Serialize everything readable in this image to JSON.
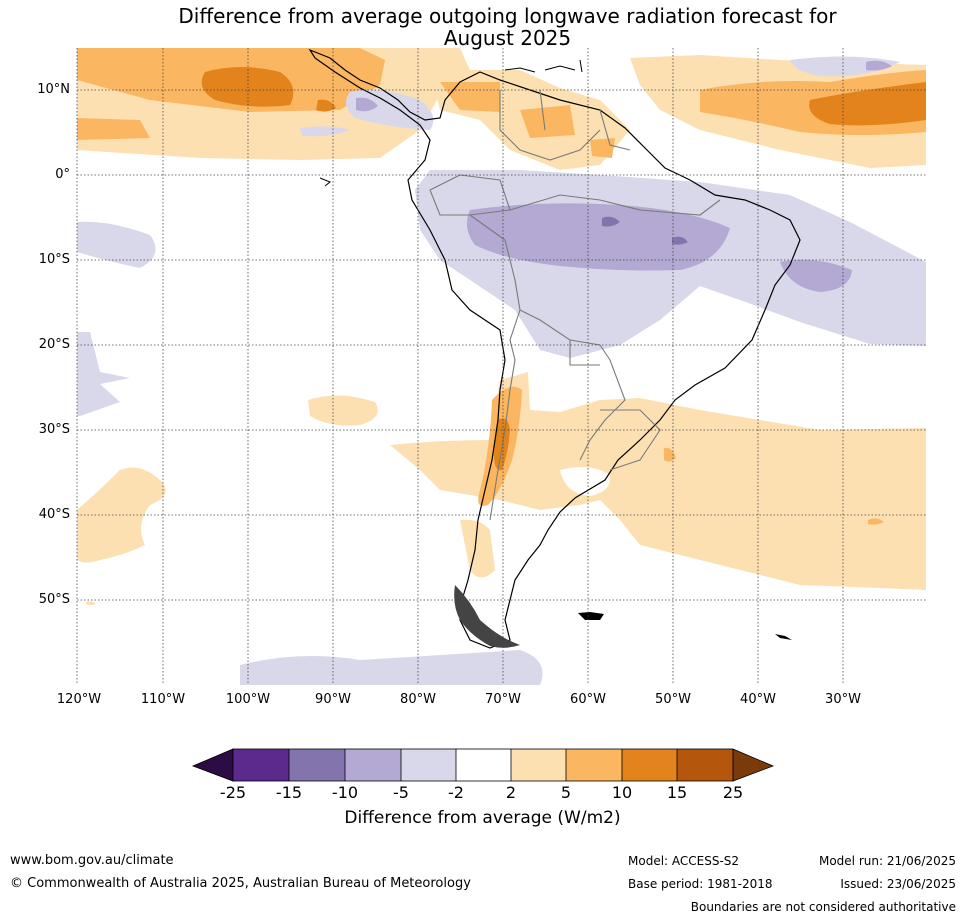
{
  "title": {
    "line1": "Difference from average outgoing longwave radiation forecast for",
    "line2": "August 2025"
  },
  "map": {
    "region": "South America",
    "lat_labels": [
      "10°N",
      "0°",
      "10°S",
      "20°S",
      "30°S",
      "40°S",
      "50°S"
    ],
    "lon_labels": [
      "120°W",
      "110°W",
      "100°W",
      "90°W",
      "80°W",
      "70°W",
      "60°W",
      "50°W",
      "40°W",
      "30°W"
    ],
    "gridlines": "dotted"
  },
  "colorbar": {
    "label": "Difference from average (W/m2)",
    "ticks": [
      "-25",
      "-15",
      "-10",
      "-5",
      "-2",
      "2",
      "5",
      "10",
      "15",
      "25"
    ],
    "colors": {
      "below_min": "#2d0b45",
      "-25_-15": "#5b2a8c",
      "-15_-10": "#8474ad",
      "-10_-5": "#b3a9d2",
      "-5_-2": "#d8d8ea",
      "-2_2": "#ffffff",
      "2_5": "#fde0b2",
      "5_10": "#fbb661",
      "10_15": "#e2841b",
      "15_25": "#b4560c",
      "above_max": "#7a3a0a"
    }
  },
  "footer": {
    "url": "www.bom.gov.au/climate",
    "copyright": "© Commonwealth of Australia 2025, Australian Bureau of Meteorology",
    "model": "Model: ACCESS-S2",
    "base_period": "Base period: 1981-2018",
    "model_run": "Model run: 21/06/2025",
    "issued": "Issued: 23/06/2025",
    "disclaimer": "Boundaries are not considered authoritative"
  }
}
